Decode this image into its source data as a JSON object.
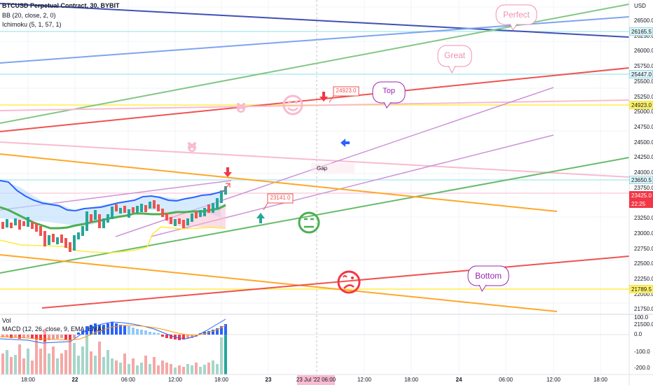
{
  "legend": {
    "symbol": "BTCUSD Perpetual Contract, 30, BYBIT",
    "bb": "BB (20, close, 2, 0)",
    "ichimoku": "Ichimoku (5, 1, 57, 1)",
    "vol": "Vol",
    "macd": "MACD (12, 26, close, 9, EMA, EMA)"
  },
  "price_axis": {
    "unit": "USD",
    "ticks": [
      "26500.0",
      "26250.0",
      "26000.0",
      "25750.0",
      "25500.0",
      "25250.0",
      "25000.0",
      "24750.0",
      "24500.0",
      "24250.0",
      "24000.0",
      "23750.0",
      "23500.0",
      "23250.0",
      "23000.0",
      "22750.0",
      "22500.0",
      "22250.0",
      "22000.0",
      "21750.0",
      "21500.0"
    ],
    "tags": [
      {
        "label": "26165.5",
        "bg": "#e0f4f7",
        "fg": "#131722",
        "border": "#9ad9e4"
      },
      {
        "label": "25447.0",
        "bg": "#e0f4f7",
        "fg": "#131722",
        "border": "#9ad9e4"
      },
      {
        "label": "24923.0",
        "bg": "#fff36b",
        "fg": "#131722",
        "border": "#f2e34b"
      },
      {
        "label": "23650.5",
        "bg": "#e0f4f7",
        "fg": "#131722",
        "border": "#9ad9e4"
      },
      {
        "label": "23425.0",
        "bg": "#f23645",
        "fg": "#ffffff",
        "border": "#f23645"
      },
      {
        "label": "22:25",
        "bg": "#f23645",
        "fg": "#ffffff",
        "border": "#f23645"
      },
      {
        "label": "21789.5",
        "bg": "#fff36b",
        "fg": "#131722",
        "border": "#f2e34b"
      }
    ]
  },
  "macd_axis": {
    "ticks": [
      "100.0",
      "0.0",
      "-100.0",
      "-200.0"
    ]
  },
  "time_axis": {
    "ticks": [
      "18:00",
      "22",
      "06:00",
      "12:00",
      "18:00",
      "23",
      "06:00",
      "12:00",
      "18:00",
      "24",
      "06:00",
      "12:00",
      "18:00"
    ],
    "cursor_label": "23 Jul '22  06:00"
  },
  "annotations": {
    "perfect": "Perfect",
    "great": "Great",
    "top": "Top",
    "bottom": "Bottom",
    "gap": "Gap",
    "price_top": "24923.0",
    "price_low": "23141.0"
  },
  "colors": {
    "candle_up": "#26a69a",
    "candle_down": "#ef5350",
    "bb_upper": "#2962ff",
    "bb_basis": "#4caf50",
    "ichimoku_lead": "#ffeb3b",
    "cloud": "#bbdefb",
    "trend_green": "#4caf50",
    "trend_red": "#f23645",
    "trend_blue": "#5b8fe8",
    "trend_purple": "#ce93d8",
    "trend_orange": "#ff9800",
    "hline_cyan": "#b2ebf2",
    "hline_yellow": "#fff176"
  },
  "icons": [
    "smiley-happy-icon",
    "smiley-neutral-icon",
    "smiley-sad-icon",
    "pig-icon",
    "arrow-down-icon",
    "arrow-up-icon",
    "arrow-left-icon"
  ]
}
